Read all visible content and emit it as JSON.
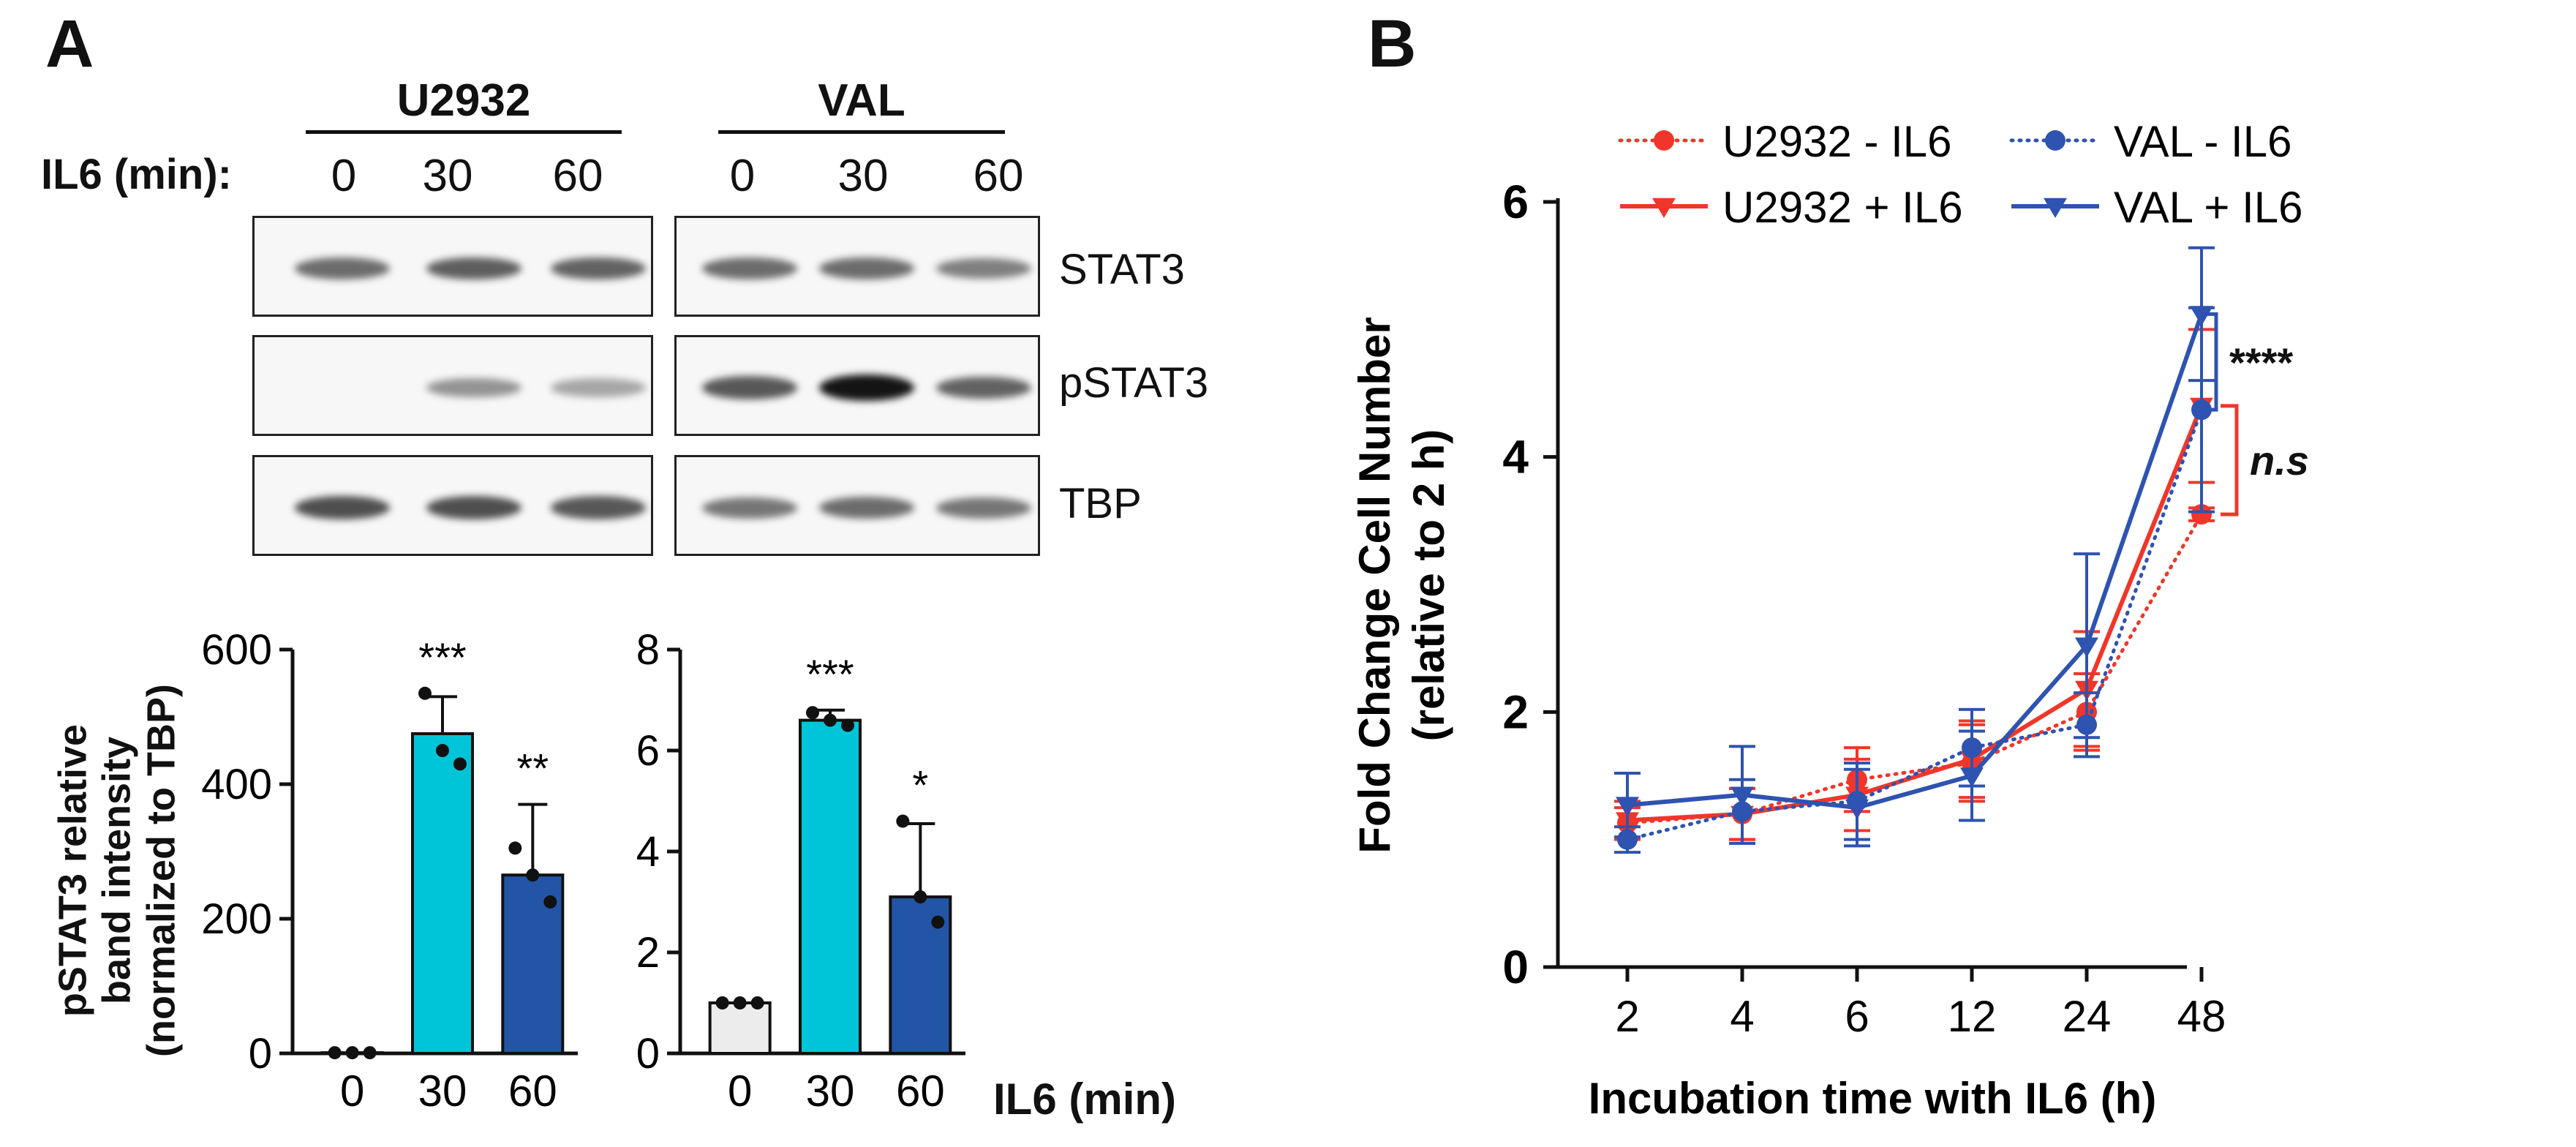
{
  "panels": {
    "a": "A",
    "b": "B"
  },
  "western_blot": {
    "groups": [
      {
        "name": "U2932",
        "lanes": [
          "0",
          "30",
          "60"
        ]
      },
      {
        "name": "VAL",
        "lanes": [
          "0",
          "30",
          "60"
        ]
      }
    ],
    "il6_label": "IL6 (min):",
    "blots": [
      {
        "name": "STAT3",
        "intensities": [
          [
            0.55,
            0.62,
            0.6
          ],
          [
            0.55,
            0.55,
            0.45
          ]
        ]
      },
      {
        "name": "pSTAT3",
        "intensities": [
          [
            0.0,
            0.35,
            0.25
          ],
          [
            0.65,
            1.0,
            0.6
          ]
        ]
      },
      {
        "name": "TBP",
        "intensities": [
          [
            0.7,
            0.7,
            0.65
          ],
          [
            0.5,
            0.55,
            0.5
          ]
        ]
      }
    ]
  },
  "bar_ylabel": [
    "pSTAT3 relative",
    "band intensity",
    "(normalized to TBP)"
  ],
  "bar_xlabel": "IL6 (min)",
  "chart_data": [
    {
      "type": "bar",
      "group": "U2932",
      "categories": [
        "0",
        "30",
        "60"
      ],
      "values": [
        1,
        475,
        265
      ],
      "errors": [
        0,
        55,
        105
      ],
      "points": [
        [
          1,
          1,
          1
        ],
        [
          535,
          450,
          430
        ],
        [
          305,
          265,
          225
        ]
      ],
      "significance": [
        "",
        "***",
        "**"
      ],
      "bar_colors": [
        "#ececec",
        "#00c5d9",
        "#2355a6"
      ],
      "ylim": [
        0,
        600
      ],
      "yticks": [
        "0",
        "200",
        "400",
        "600"
      ]
    },
    {
      "type": "bar",
      "group": "VAL",
      "categories": [
        "0",
        "30",
        "60"
      ],
      "values": [
        1.0,
        6.6,
        3.1
      ],
      "errors": [
        0.0,
        0.2,
        1.45
      ],
      "points": [
        [
          1.0,
          1.0,
          1.0
        ],
        [
          6.75,
          6.6,
          6.5
        ],
        [
          4.6,
          3.1,
          2.6
        ]
      ],
      "significance": [
        "",
        "***",
        "*"
      ],
      "bar_colors": [
        "#ececec",
        "#00c5d9",
        "#2355a6"
      ],
      "ylim": [
        0,
        8
      ],
      "yticks": [
        "0",
        "2",
        "4",
        "6",
        "8"
      ]
    },
    {
      "type": "line",
      "x": [
        "2",
        "4",
        "6",
        "12",
        "24",
        "48"
      ],
      "ylabel": [
        "Fold Change Cell Number",
        "(relative to 2 h)"
      ],
      "xlabel": "Incubation time with IL6 (h)",
      "ylim": [
        0,
        6
      ],
      "yticks": [
        "0",
        "2",
        "4",
        "6"
      ],
      "legend_position": "top",
      "series": [
        {
          "name": "U2932 - IL6",
          "color": "#f0362a",
          "dash": "dotted",
          "marker": "circle",
          "values": [
            1.13,
            1.2,
            1.47,
            1.6,
            2.0,
            3.55
          ],
          "errors": [
            0.12,
            0.2,
            0.25,
            0.3,
            0.3,
            0.05
          ]
        },
        {
          "name": "U2932 + IL6",
          "color": "#f0362a",
          "dash": "solid",
          "marker": "triangle-down",
          "values": [
            1.15,
            1.2,
            1.35,
            1.63,
            2.18,
            4.4
          ],
          "errors": [
            0.15,
            0.2,
            0.28,
            0.3,
            0.45,
            0.6
          ]
        },
        {
          "name": "VAL - IL6",
          "color": "#2e53b0",
          "dash": "dotted",
          "marker": "circle",
          "values": [
            1.0,
            1.22,
            1.3,
            1.72,
            1.9,
            4.37
          ],
          "errors": [
            0.1,
            0.25,
            0.3,
            0.3,
            0.25,
            0.8
          ]
        },
        {
          "name": "VAL + IL6",
          "color": "#2e53b0",
          "dash": "solid",
          "marker": "triangle-down",
          "values": [
            1.27,
            1.35,
            1.25,
            1.5,
            2.52,
            5.12
          ],
          "errors": [
            0.25,
            0.38,
            0.3,
            0.35,
            0.72,
            0.52
          ]
        }
      ],
      "annotations": [
        {
          "text": "****",
          "color": "#2e53b0",
          "between": [
            4.37,
            5.12
          ]
        },
        {
          "text": "n.s",
          "color": "#f0362a",
          "between": [
            3.55,
            4.4
          ]
        }
      ]
    }
  ]
}
